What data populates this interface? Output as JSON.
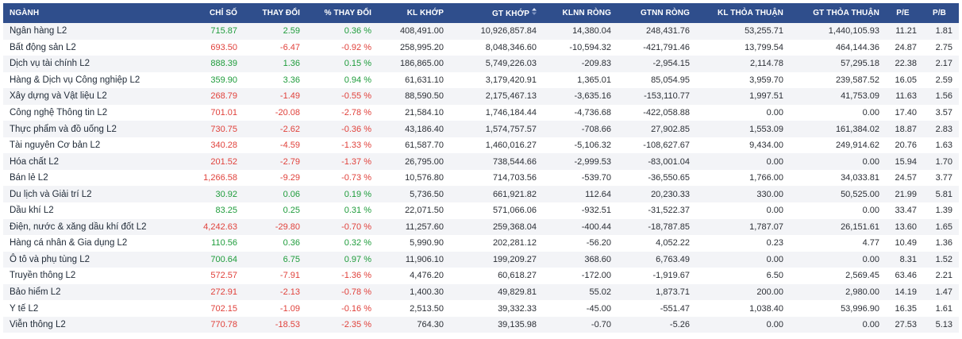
{
  "columns": [
    {
      "key": "name",
      "label": "NGÀNH"
    },
    {
      "key": "index",
      "label": "CHỈ SỐ"
    },
    {
      "key": "change",
      "label": "THAY ĐỔI"
    },
    {
      "key": "pct",
      "label": "% THAY ĐỔI"
    },
    {
      "key": "kl_khop",
      "label": "KL KHỚP"
    },
    {
      "key": "gt_khop",
      "label": "GT KHỚP"
    },
    {
      "key": "klnn",
      "label": "KLNN RÒNG"
    },
    {
      "key": "gtnn",
      "label": "GTNN RÒNG"
    },
    {
      "key": "kl_tt",
      "label": "KL THỎA THUẬN"
    },
    {
      "key": "gt_tt",
      "label": "GT THỎA THUẬN"
    },
    {
      "key": "pe",
      "label": "P/E"
    },
    {
      "key": "pb",
      "label": "P/B"
    }
  ],
  "sorted_column": "gt_khop",
  "sort_icon": "sort-updown-icon",
  "colors": {
    "header_bg": "#2f4e8c",
    "up": "#1e9c3b",
    "down": "#e0413b"
  },
  "rows": [
    {
      "name": "Ngân hàng L2",
      "index": "715.87",
      "change": "2.59",
      "pct": "0.36 %",
      "kl_khop": "408,491.00",
      "gt_khop": "10,926,857.84",
      "klnn": "14,380.04",
      "gtnn": "248,431.76",
      "kl_tt": "53,255.71",
      "gt_tt": "1,440,105.93",
      "pe": "11.21",
      "pb": "1.81",
      "trend": "up"
    },
    {
      "name": "Bất động sản L2",
      "index": "693.50",
      "change": "-6.47",
      "pct": "-0.92 %",
      "kl_khop": "258,995.20",
      "gt_khop": "8,048,346.60",
      "klnn": "-10,594.32",
      "gtnn": "-421,791.46",
      "kl_tt": "13,799.54",
      "gt_tt": "464,144.36",
      "pe": "24.87",
      "pb": "2.75",
      "trend": "down"
    },
    {
      "name": "Dịch vụ tài chính L2",
      "index": "888.39",
      "change": "1.36",
      "pct": "0.15 %",
      "kl_khop": "186,865.00",
      "gt_khop": "5,749,226.03",
      "klnn": "-209.83",
      "gtnn": "-2,954.15",
      "kl_tt": "2,114.78",
      "gt_tt": "57,295.18",
      "pe": "22.38",
      "pb": "2.17",
      "trend": "up"
    },
    {
      "name": "Hàng & Dịch vụ Công nghiệp L2",
      "index": "359.90",
      "change": "3.36",
      "pct": "0.94 %",
      "kl_khop": "61,631.10",
      "gt_khop": "3,179,420.91",
      "klnn": "1,365.01",
      "gtnn": "85,054.95",
      "kl_tt": "3,959.70",
      "gt_tt": "239,587.52",
      "pe": "16.05",
      "pb": "2.59",
      "trend": "up"
    },
    {
      "name": "Xây dựng và Vật liệu L2",
      "index": "268.79",
      "change": "-1.49",
      "pct": "-0.55 %",
      "kl_khop": "88,590.50",
      "gt_khop": "2,175,467.13",
      "klnn": "-3,635.16",
      "gtnn": "-153,110.77",
      "kl_tt": "1,997.51",
      "gt_tt": "41,753.09",
      "pe": "11.63",
      "pb": "1.56",
      "trend": "down"
    },
    {
      "name": "Công nghệ Thông tin L2",
      "index": "701.01",
      "change": "-20.08",
      "pct": "-2.78 %",
      "kl_khop": "21,584.10",
      "gt_khop": "1,746,184.44",
      "klnn": "-4,736.68",
      "gtnn": "-422,058.88",
      "kl_tt": "0.00",
      "gt_tt": "0.00",
      "pe": "17.40",
      "pb": "3.57",
      "trend": "down"
    },
    {
      "name": "Thực phẩm và đồ uống L2",
      "index": "730.75",
      "change": "-2.62",
      "pct": "-0.36 %",
      "kl_khop": "43,186.40",
      "gt_khop": "1,574,757.57",
      "klnn": "-708.66",
      "gtnn": "27,902.85",
      "kl_tt": "1,553.09",
      "gt_tt": "161,384.02",
      "pe": "18.87",
      "pb": "2.83",
      "trend": "down"
    },
    {
      "name": "Tài nguyên Cơ bản L2",
      "index": "340.28",
      "change": "-4.59",
      "pct": "-1.33 %",
      "kl_khop": "61,587.70",
      "gt_khop": "1,460,016.27",
      "klnn": "-5,106.32",
      "gtnn": "-108,627.67",
      "kl_tt": "9,434.00",
      "gt_tt": "249,914.62",
      "pe": "20.76",
      "pb": "1.63",
      "trend": "down"
    },
    {
      "name": "Hóa chất L2",
      "index": "201.52",
      "change": "-2.79",
      "pct": "-1.37 %",
      "kl_khop": "26,795.00",
      "gt_khop": "738,544.66",
      "klnn": "-2,999.53",
      "gtnn": "-83,001.04",
      "kl_tt": "0.00",
      "gt_tt": "0.00",
      "pe": "15.94",
      "pb": "1.70",
      "trend": "down"
    },
    {
      "name": "Bán lẻ L2",
      "index": "1,266.58",
      "change": "-9.29",
      "pct": "-0.73 %",
      "kl_khop": "10,576.80",
      "gt_khop": "714,703.56",
      "klnn": "-539.70",
      "gtnn": "-36,550.65",
      "kl_tt": "1,766.00",
      "gt_tt": "34,033.81",
      "pe": "24.57",
      "pb": "3.77",
      "trend": "down"
    },
    {
      "name": "Du lịch và Giải trí L2",
      "index": "30.92",
      "change": "0.06",
      "pct": "0.19 %",
      "kl_khop": "5,736.50",
      "gt_khop": "661,921.82",
      "klnn": "112.64",
      "gtnn": "20,230.33",
      "kl_tt": "330.00",
      "gt_tt": "50,525.00",
      "pe": "21.99",
      "pb": "5.81",
      "trend": "up"
    },
    {
      "name": "Dầu khí L2",
      "index": "83.25",
      "change": "0.25",
      "pct": "0.31 %",
      "kl_khop": "22,071.50",
      "gt_khop": "571,066.06",
      "klnn": "-932.51",
      "gtnn": "-31,522.37",
      "kl_tt": "0.00",
      "gt_tt": "0.00",
      "pe": "33.47",
      "pb": "1.39",
      "trend": "up"
    },
    {
      "name": "Điện, nước & xăng dầu khí đốt L2",
      "index": "4,242.63",
      "change": "-29.80",
      "pct": "-0.70 %",
      "kl_khop": "11,257.60",
      "gt_khop": "259,368.04",
      "klnn": "-400.44",
      "gtnn": "-18,787.85",
      "kl_tt": "1,787.07",
      "gt_tt": "26,151.61",
      "pe": "13.60",
      "pb": "1.65",
      "trend": "down"
    },
    {
      "name": "Hàng cá nhân & Gia dụng L2",
      "index": "110.56",
      "change": "0.36",
      "pct": "0.32 %",
      "kl_khop": "5,990.90",
      "gt_khop": "202,281.12",
      "klnn": "-56.20",
      "gtnn": "4,052.22",
      "kl_tt": "0.23",
      "gt_tt": "4.77",
      "pe": "10.49",
      "pb": "1.36",
      "trend": "up"
    },
    {
      "name": "Ô tô và phụ tùng L2",
      "index": "700.64",
      "change": "6.75",
      "pct": "0.97 %",
      "kl_khop": "11,906.10",
      "gt_khop": "199,209.27",
      "klnn": "368.60",
      "gtnn": "6,763.49",
      "kl_tt": "0.00",
      "gt_tt": "0.00",
      "pe": "8.31",
      "pb": "1.52",
      "trend": "up"
    },
    {
      "name": "Truyền thông L2",
      "index": "572.57",
      "change": "-7.91",
      "pct": "-1.36 %",
      "kl_khop": "4,476.20",
      "gt_khop": "60,618.27",
      "klnn": "-172.00",
      "gtnn": "-1,919.67",
      "kl_tt": "6.50",
      "gt_tt": "2,569.45",
      "pe": "63.46",
      "pb": "2.21",
      "trend": "down"
    },
    {
      "name": "Bảo hiểm L2",
      "index": "272.91",
      "change": "-2.13",
      "pct": "-0.78 %",
      "kl_khop": "1,400.30",
      "gt_khop": "49,829.81",
      "klnn": "55.02",
      "gtnn": "1,873.71",
      "kl_tt": "200.00",
      "gt_tt": "2,980.00",
      "pe": "14.19",
      "pb": "1.47",
      "trend": "down"
    },
    {
      "name": "Y tế L2",
      "index": "702.15",
      "change": "-1.09",
      "pct": "-0.16 %",
      "kl_khop": "2,513.50",
      "gt_khop": "39,332.33",
      "klnn": "-45.00",
      "gtnn": "-551.47",
      "kl_tt": "1,038.40",
      "gt_tt": "53,996.90",
      "pe": "16.35",
      "pb": "1.61",
      "trend": "down"
    },
    {
      "name": "Viễn thông L2",
      "index": "770.78",
      "change": "-18.53",
      "pct": "-2.35 %",
      "kl_khop": "764.30",
      "gt_khop": "39,135.98",
      "klnn": "-0.70",
      "gtnn": "-5.26",
      "kl_tt": "0.00",
      "gt_tt": "0.00",
      "pe": "27.53",
      "pb": "5.13",
      "trend": "down"
    }
  ]
}
